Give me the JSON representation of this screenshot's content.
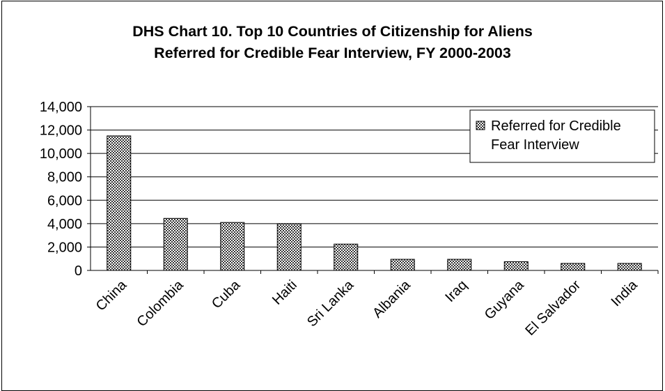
{
  "chart_data": {
    "type": "bar",
    "title_line1": "DHS Chart 10.  Top 10 Countries of Citizenship for Aliens",
    "title_line2": "Referred for Credible Fear Interview, FY 2000-2003",
    "categories": [
      "China",
      "Colombia",
      "Cuba",
      "Haiti",
      "Sri Lanka",
      "Albania",
      "Iraq",
      "Guyana",
      "El Salvador",
      "India"
    ],
    "series": [
      {
        "name": "Referred for Credible Fear Interview",
        "values": [
          11500,
          4450,
          4100,
          4000,
          2250,
          950,
          950,
          750,
          600,
          600
        ]
      }
    ],
    "legend_lines": [
      "Referred for Credible",
      "Fear Interview"
    ],
    "legend_position": "top-right",
    "ylim": [
      0,
      14000
    ],
    "yticks": [
      0,
      2000,
      4000,
      6000,
      8000,
      10000,
      12000,
      14000
    ],
    "ytick_labels": [
      "0",
      "2,000",
      "4,000",
      "6,000",
      "8,000",
      "10,000",
      "12,000",
      "14,000"
    ],
    "grid": true,
    "bar_color": "#9a9a9a",
    "bar_pattern": "crosshatch",
    "xlabel": "",
    "ylabel": ""
  }
}
